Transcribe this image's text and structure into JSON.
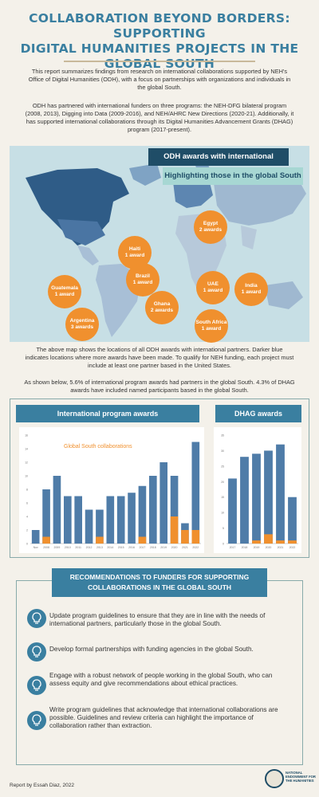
{
  "header": {
    "title_line1": "COLLABORATION BEYOND BORDERS: SUPPORTING",
    "title_line2": "DIGITAL HUMANITIES PROJECTS  IN THE GLOBAL SOUTH"
  },
  "intro": {
    "p1": "This report summarizes findings from research on international collaborations supported by NEH's Office of Digital Humanities (ODH), with a focus on partnerships with organizations and individuals in the global South.",
    "p2": "ODH has partnered with international funders on three programs: the NEH-DFG bilateral program (2008, 2013), Digging into Data (2009-2016), and NEH/AHRC New Directions (2020-21). Additionally, it has supported international collaborations through its Digital Humanities Advancement Grants (DHAG) program (2017-present)."
  },
  "map": {
    "tag1": "ODH awards with international partners",
    "tag2": "Highlighting those in the global South",
    "bubbles": [
      {
        "name": "Egypt",
        "count": "2 awards"
      },
      {
        "name": "Haiti",
        "count": "1 award"
      },
      {
        "name": "Brazil",
        "count": "1 award"
      },
      {
        "name": "Guatemala",
        "count": "1 award"
      },
      {
        "name": "Argentina",
        "count": "3 awards"
      },
      {
        "name": "Ghana",
        "count": "2 awards"
      },
      {
        "name": "UAE",
        "count": "1 award"
      },
      {
        "name": "India",
        "count": "1 award"
      },
      {
        "name": "South Africa",
        "count": "1 award"
      }
    ],
    "caption": "The above map shows the locations of all ODH awards with international partners. Darker blue indicates locations where more awards have been made. To qualify for NEH funding, each project must include at least one partner based in the United States.",
    "stats": "As shown below, 5.6% of international program awards had partners in the global South. 4.3% of DHAG awards have included named participants based in the global South."
  },
  "chart_data": [
    {
      "type": "bar",
      "title": "International  program awards",
      "annotation": "Global South collaborations",
      "categories": [
        "Nov",
        "2008",
        "2009",
        "2010",
        "2011",
        "2012",
        "2013",
        "2014",
        "2015",
        "2016",
        "2017",
        "2018",
        "2019",
        "2020",
        "2021",
        "2022"
      ],
      "series": [
        {
          "name": "",
          "values": [
            2,
            8,
            10,
            7,
            7,
            5,
            5,
            7,
            7,
            7.5,
            8.5,
            10,
            12,
            10,
            3,
            15
          ]
        },
        {
          "name": "",
          "values": [
            0,
            1,
            0,
            0,
            0,
            0,
            1,
            0,
            0,
            0,
            1,
            0,
            0,
            4,
            2,
            2
          ]
        }
      ],
      "ylim": [
        0,
        16
      ],
      "colors": [
        "#4f7ca8",
        "#f0902e"
      ]
    },
    {
      "type": "bar",
      "title": "DHAG awards",
      "categories": [
        "2017",
        "2018",
        "2019",
        "2020",
        "2021",
        "2022"
      ],
      "series": [
        {
          "name": "",
          "values": [
            21,
            28,
            29,
            30,
            32,
            15
          ]
        },
        {
          "name": "",
          "values": [
            0,
            0,
            1,
            3,
            1,
            1
          ]
        }
      ],
      "ylim": [
        0,
        35
      ],
      "colors": [
        "#4f7ca8",
        "#f0902e"
      ]
    }
  ],
  "recommendations": {
    "heading_line1": "RECOMMENDATIONS TO FUNDERS FOR SUPPORTING",
    "heading_line2": "COLLABORATIONS IN THE GLOBAL SOUTH",
    "items": [
      "Update program guidelines to ensure that they are in line with the needs of international partners, particularly those in the global South.",
      "Develop formal partnerships with funding agencies in the global South.",
      "Engage with a robust network of people working in the global South, who can assess equity and give recommendations about ethical practices.",
      "Write program guidelines that acknowledge that international collaborations are possible. Guidelines and review criteria can highlight the importance of collaboration rather than extraction."
    ],
    "icon": "lightbulb-icon"
  },
  "footer": {
    "credit": "Report by Essah Diaz, 2022",
    "logo_text": "NATIONAL ENDOWMENT FOR THE HUMANITIES"
  }
}
